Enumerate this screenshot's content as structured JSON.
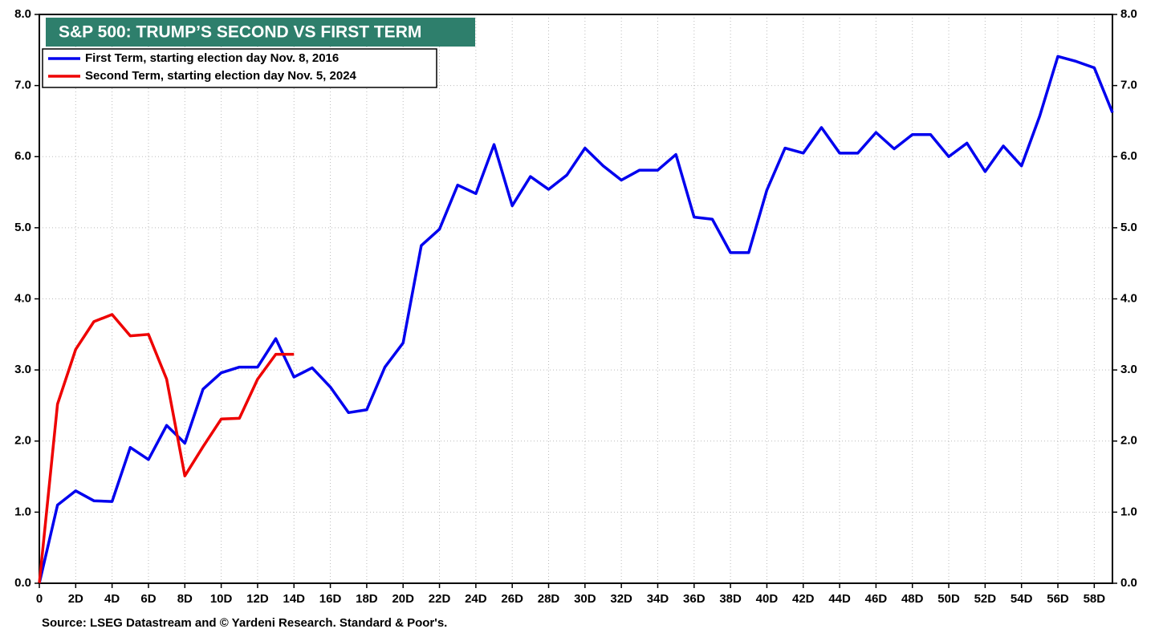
{
  "chart_data": {
    "type": "line",
    "title": "S&P 500: TRUMP’S SECOND VS FIRST TERM",
    "source": "Source: LSEG Datastream and © Yardeni Research. Standard & Poor's.",
    "legend": "top-left",
    "grid": true,
    "xlim": [
      0,
      59
    ],
    "xticks": [
      0,
      {
        "value": 2,
        "label": "2D"
      },
      {
        "value": 4,
        "label": "4D"
      },
      {
        "value": 6,
        "label": "6D"
      },
      {
        "value": 8,
        "label": "8D"
      },
      {
        "value": 10,
        "label": "10D"
      },
      {
        "value": 12,
        "label": "12D"
      },
      {
        "value": 14,
        "label": "14D"
      },
      {
        "value": 16,
        "label": "16D"
      },
      {
        "value": 18,
        "label": "18D"
      },
      {
        "value": 20,
        "label": "20D"
      },
      {
        "value": 22,
        "label": "22D"
      },
      {
        "value": 24,
        "label": "24D"
      },
      {
        "value": 26,
        "label": "26D"
      },
      {
        "value": 28,
        "label": "28D"
      },
      {
        "value": 30,
        "label": "30D"
      },
      {
        "value": 32,
        "label": "32D"
      },
      {
        "value": 34,
        "label": "34D"
      },
      {
        "value": 36,
        "label": "36D"
      },
      {
        "value": 38,
        "label": "38D"
      },
      {
        "value": 40,
        "label": "40D"
      },
      {
        "value": 42,
        "label": "42D"
      },
      {
        "value": 44,
        "label": "44D"
      },
      {
        "value": 46,
        "label": "46D"
      },
      {
        "value": 48,
        "label": "48D"
      },
      {
        "value": 50,
        "label": "50D"
      },
      {
        "value": 52,
        "label": "52D"
      },
      {
        "value": 54,
        "label": "54D"
      },
      {
        "value": 56,
        "label": "56D"
      },
      {
        "value": 58,
        "label": "58D"
      }
    ],
    "ylim": [
      0,
      8
    ],
    "yticks": [
      {
        "value": 0,
        "label": "0.0"
      },
      {
        "value": 1,
        "label": "1.0"
      },
      {
        "value": 2,
        "label": "2.0"
      },
      {
        "value": 3,
        "label": "3.0"
      },
      {
        "value": 4,
        "label": "4.0"
      },
      {
        "value": 5,
        "label": "5.0"
      },
      {
        "value": 6,
        "label": "6.0"
      },
      {
        "value": 7,
        "label": "7.0"
      },
      {
        "value": 8,
        "label": "8.0"
      }
    ],
    "y2lim": [
      0,
      8
    ],
    "y2ticks": [
      {
        "value": 0,
        "label": "0.0"
      },
      {
        "value": 1,
        "label": "1.0"
      },
      {
        "value": 2,
        "label": "2.0"
      },
      {
        "value": 3,
        "label": "3.0"
      },
      {
        "value": 4,
        "label": "4.0"
      },
      {
        "value": 5,
        "label": "5.0"
      },
      {
        "value": 6,
        "label": "6.0"
      },
      {
        "value": 7,
        "label": "7.0"
      },
      {
        "value": 8,
        "label": "8.0"
      }
    ],
    "series": [
      {
        "name": "First Term, starting election day Nov. 8, 2016",
        "color": "#0000ee",
        "x": [
          0,
          1,
          2,
          3,
          4,
          5,
          6,
          7,
          8,
          9,
          10,
          11,
          12,
          13,
          14,
          15,
          16,
          17,
          18,
          19,
          20,
          21,
          22,
          23,
          24,
          25,
          26,
          27,
          28,
          29,
          30,
          31,
          32,
          33,
          34,
          35,
          36,
          37,
          38,
          39,
          40,
          41,
          42,
          43,
          44,
          45,
          46,
          47,
          48,
          49,
          50,
          51,
          52,
          53,
          54,
          55,
          56,
          57,
          58,
          59
        ],
        "values": [
          0,
          1.1,
          1.3,
          1.16,
          1.15,
          1.91,
          1.74,
          2.22,
          1.97,
          2.73,
          2.96,
          3.04,
          3.04,
          3.44,
          2.9,
          3.03,
          2.76,
          2.4,
          2.44,
          3.04,
          3.38,
          4.75,
          4.98,
          5.6,
          5.48,
          6.17,
          5.31,
          5.72,
          5.54,
          5.74,
          6.12,
          5.87,
          5.67,
          5.81,
          5.81,
          6.03,
          5.15,
          5.12,
          4.65,
          4.65,
          5.53,
          6.12,
          6.05,
          6.41,
          6.05,
          6.05,
          6.34,
          6.11,
          6.31,
          6.31,
          6.0,
          6.19,
          5.79,
          6.15,
          5.87,
          6.57,
          7.41,
          7.34,
          7.25,
          6.62
        ]
      },
      {
        "name": "Second Term, starting election day Nov. 5, 2024",
        "color": "#ee0000",
        "x": [
          0,
          1,
          2,
          3,
          4,
          5,
          6,
          7,
          8,
          9,
          10,
          11,
          12,
          13,
          14
        ],
        "values": [
          0,
          2.52,
          3.29,
          3.68,
          3.78,
          3.48,
          3.5,
          2.87,
          1.51,
          1.92,
          2.31,
          2.32,
          2.87,
          3.22,
          3.22
        ]
      }
    ]
  }
}
